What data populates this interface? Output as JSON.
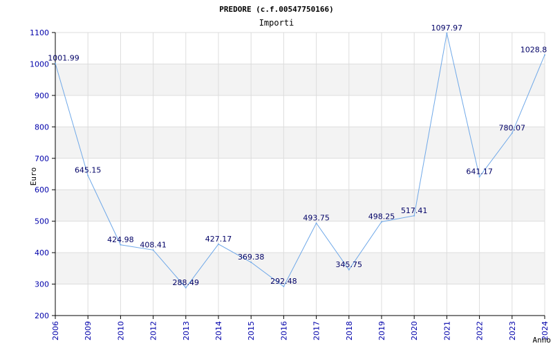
{
  "chart_data": {
    "type": "line",
    "title": "PREDORE (c.f.00547750166)",
    "subtitle": "Importi",
    "xlabel": "Anno",
    "ylabel": "Euro",
    "x": [
      "2006",
      "2009",
      "2010",
      "2012",
      "2013",
      "2014",
      "2015",
      "2016",
      "2017",
      "2018",
      "2019",
      "2020",
      "2021",
      "2022",
      "2023",
      "2024"
    ],
    "values": [
      1001.99,
      645.15,
      424.98,
      408.41,
      288.49,
      427.17,
      369.38,
      292.48,
      493.75,
      345.75,
      498.25,
      517.41,
      1097.97,
      641.17,
      780.07,
      1028.8
    ],
    "data_labels": [
      "1001.99",
      "645.15",
      "424.98",
      "408.41",
      "288.49",
      "427.17",
      "369.38",
      "292.48",
      "493.75",
      "345.75",
      "498.25",
      "517.41",
      "1097.97",
      "641.17",
      "780.07",
      "1028.8"
    ],
    "ylim": [
      200,
      1100
    ],
    "yticks": [
      200,
      300,
      400,
      500,
      600,
      700,
      800,
      900,
      1000,
      1100
    ],
    "grid": true,
    "line_color": "#6fa8e8",
    "band_color": "#f3f3f3",
    "grid_color": "#dddddd",
    "tick_color": "#0000aa"
  }
}
